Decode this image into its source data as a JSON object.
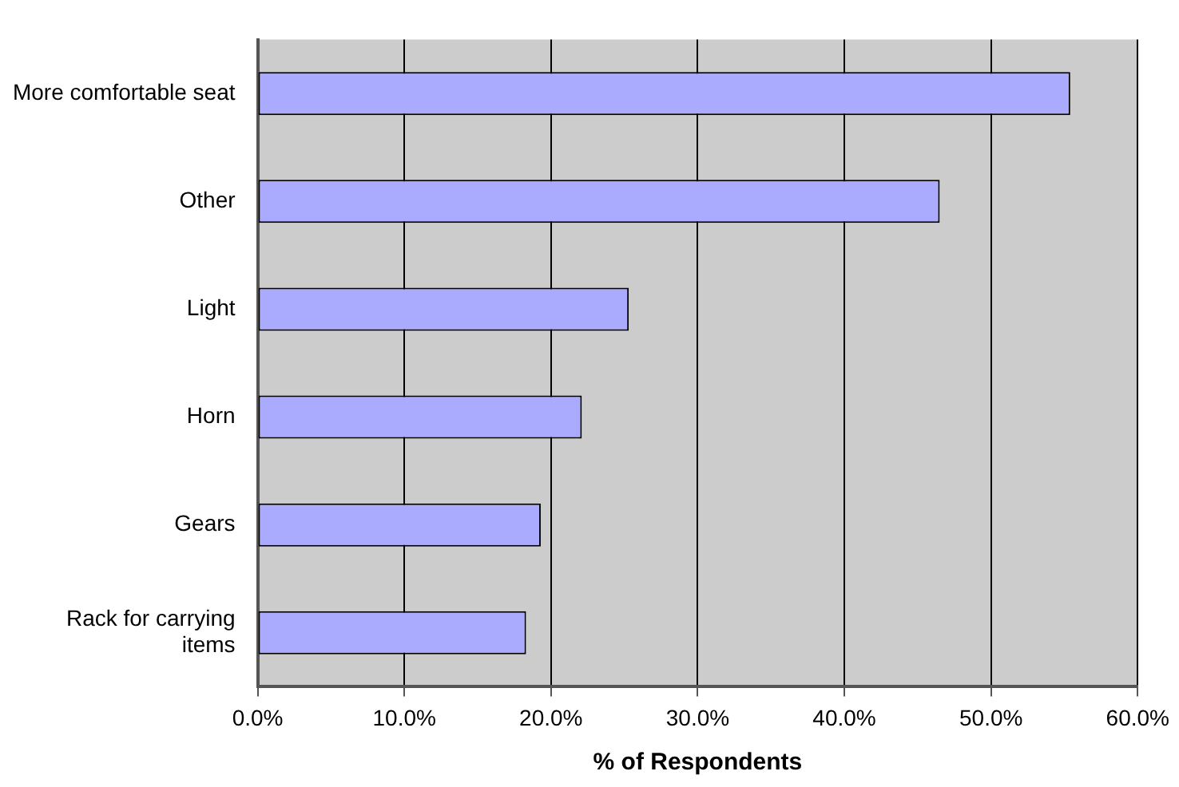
{
  "chart_data": {
    "type": "bar",
    "orientation": "horizontal",
    "xlabel": "% of Respondents",
    "categories": [
      "More comfortable seat",
      "Other",
      "Light",
      "Horn",
      "Gears",
      "Rack for carrying items"
    ],
    "values": [
      55.4,
      46.5,
      25.3,
      22.1,
      19.3,
      18.3
    ],
    "color": "#aaaaff",
    "xlim": [
      0,
      60
    ],
    "xticks": [
      {
        "value": 0,
        "label": "0.0%"
      },
      {
        "value": 10,
        "label": "10.0%"
      },
      {
        "value": 20,
        "label": "20.0%"
      },
      {
        "value": 30,
        "label": "30.0%"
      },
      {
        "value": 40,
        "label": "40.0%"
      },
      {
        "value": 50,
        "label": "50.0%"
      },
      {
        "value": 60,
        "label": "60.0%"
      }
    ],
    "grid": "x",
    "legend": false
  }
}
